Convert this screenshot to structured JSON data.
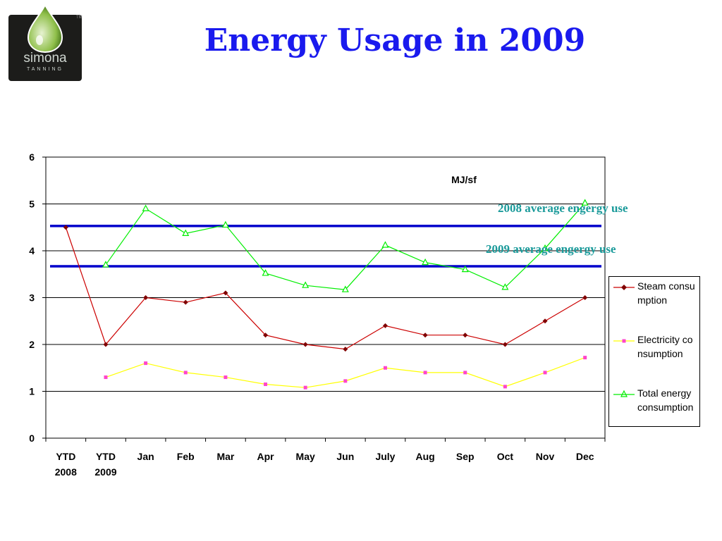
{
  "slide": {
    "title": "Energy Usage in 2009"
  },
  "logo": {
    "word": "simona",
    "sub": "TANNING",
    "tm": "TM"
  },
  "chart_data": {
    "type": "line",
    "unit_label": "MJ/sf",
    "categories": [
      [
        "YTD",
        "2008"
      ],
      [
        "YTD",
        "2009"
      ],
      [
        "Jan"
      ],
      [
        "Feb"
      ],
      [
        "Mar"
      ],
      [
        "Apr"
      ],
      [
        "May"
      ],
      [
        "Jun"
      ],
      [
        "July"
      ],
      [
        "Aug"
      ],
      [
        "Sep"
      ],
      [
        "Oct"
      ],
      [
        "Nov"
      ],
      [
        "Dec"
      ]
    ],
    "ylim": [
      0,
      6
    ],
    "yticks": [
      0,
      1,
      2,
      3,
      4,
      5,
      6
    ],
    "grid": true,
    "legend_position": "right",
    "series": [
      {
        "name": "Steam consumption",
        "color": "#cc0000",
        "marker": "diamond",
        "marker_color": "#800000",
        "values": [
          4.5,
          2.0,
          3.0,
          2.9,
          3.1,
          2.2,
          2.0,
          1.9,
          2.4,
          2.2,
          2.2,
          2.0,
          2.5,
          3.0
        ]
      },
      {
        "name": "Electricity consumption",
        "color": "#ffff00",
        "marker": "square",
        "marker_color": "#ff44cc",
        "values": [
          null,
          1.3,
          1.6,
          1.4,
          1.3,
          1.15,
          1.08,
          1.22,
          1.5,
          1.4,
          1.4,
          1.1,
          1.4,
          1.72
        ]
      },
      {
        "name": "Total energy consumption",
        "color": "#00ee00",
        "marker": "triangle",
        "marker_color": "#00ee00",
        "values": [
          null,
          3.7,
          4.9,
          4.37,
          4.55,
          3.52,
          3.26,
          3.17,
          4.12,
          3.75,
          3.6,
          3.22,
          4.05,
          5.02
        ]
      }
    ],
    "reference_lines": [
      {
        "label": "2008 average engergy use",
        "value": 4.53,
        "color": "#0000cc"
      },
      {
        "label": "2009 average engergy use",
        "value": 3.67,
        "color": "#0000cc"
      }
    ]
  }
}
